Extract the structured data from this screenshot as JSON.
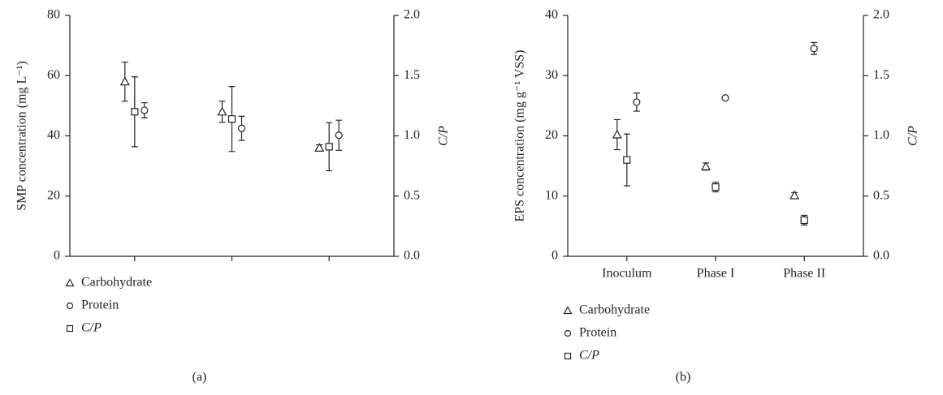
{
  "chart_data": [
    {
      "type": "scatter",
      "panel_label": "(a)",
      "ylabel": "SMP concentration (mg L⁻¹)",
      "y2label": "C/P",
      "categories": [
        null,
        null,
        null
      ],
      "ylim": [
        0,
        80
      ],
      "yticks": [
        0,
        20,
        40,
        60,
        80
      ],
      "y2lim": [
        0,
        2
      ],
      "y2ticks": [
        {
          "value": 0,
          "label": "0.0"
        },
        {
          "value": 0.5,
          "label": "0.5"
        },
        {
          "value": 1,
          "label": "1.0"
        },
        {
          "value": 1.5,
          "label": "1.5"
        },
        {
          "value": 2,
          "label": "2.0"
        }
      ],
      "series": [
        {
          "name": "Carbohydrate",
          "marker": "triangle",
          "color": "#222222",
          "values": [
            58,
            48,
            36
          ],
          "errors": [
            6.5,
            3.5,
            1
          ]
        },
        {
          "name": "Protein",
          "marker": "circle",
          "color": "#222222",
          "values": [
            48.5,
            42.5,
            40.2
          ],
          "errors": [
            2.5,
            4,
            5
          ]
        },
        {
          "name": "C/P",
          "marker": "square",
          "color": "#222222",
          "axis": "y2",
          "values": [
            1.2,
            1.14,
            0.91
          ],
          "errors": [
            0.29,
            0.27,
            0.2
          ]
        }
      ]
    },
    {
      "type": "scatter",
      "panel_label": "(b)",
      "ylabel": "EPS concentration (mg g⁻¹ VSS)",
      "y2label": "C/P",
      "categories": [
        "Inoculum",
        "Phase I",
        "Phase II"
      ],
      "ylim": [
        0,
        40
      ],
      "yticks": [
        0,
        10,
        20,
        30,
        40
      ],
      "y2lim": [
        0,
        2
      ],
      "y2ticks": [
        {
          "value": 0,
          "label": "0.0"
        },
        {
          "value": 0.5,
          "label": "0.5"
        },
        {
          "value": 1,
          "label": "1.0"
        },
        {
          "value": 1.5,
          "label": "1.5"
        },
        {
          "value": 2,
          "label": "2.0"
        }
      ],
      "series": [
        {
          "name": "Carbohydrate",
          "marker": "triangle",
          "color": "#222222",
          "values": [
            20.2,
            14.9,
            10.1
          ],
          "errors": [
            2.5,
            0.6,
            0.5
          ]
        },
        {
          "name": "Protein",
          "marker": "circle",
          "color": "#222222",
          "values": [
            25.6,
            26.3,
            34.5
          ],
          "errors": [
            1.5,
            0,
            1
          ]
        },
        {
          "name": "C/P",
          "marker": "square",
          "color": "#222222",
          "axis": "y2",
          "values": [
            0.8,
            0.575,
            0.3
          ],
          "errors": [
            0.215,
            0.04,
            0.04
          ]
        }
      ]
    }
  ]
}
